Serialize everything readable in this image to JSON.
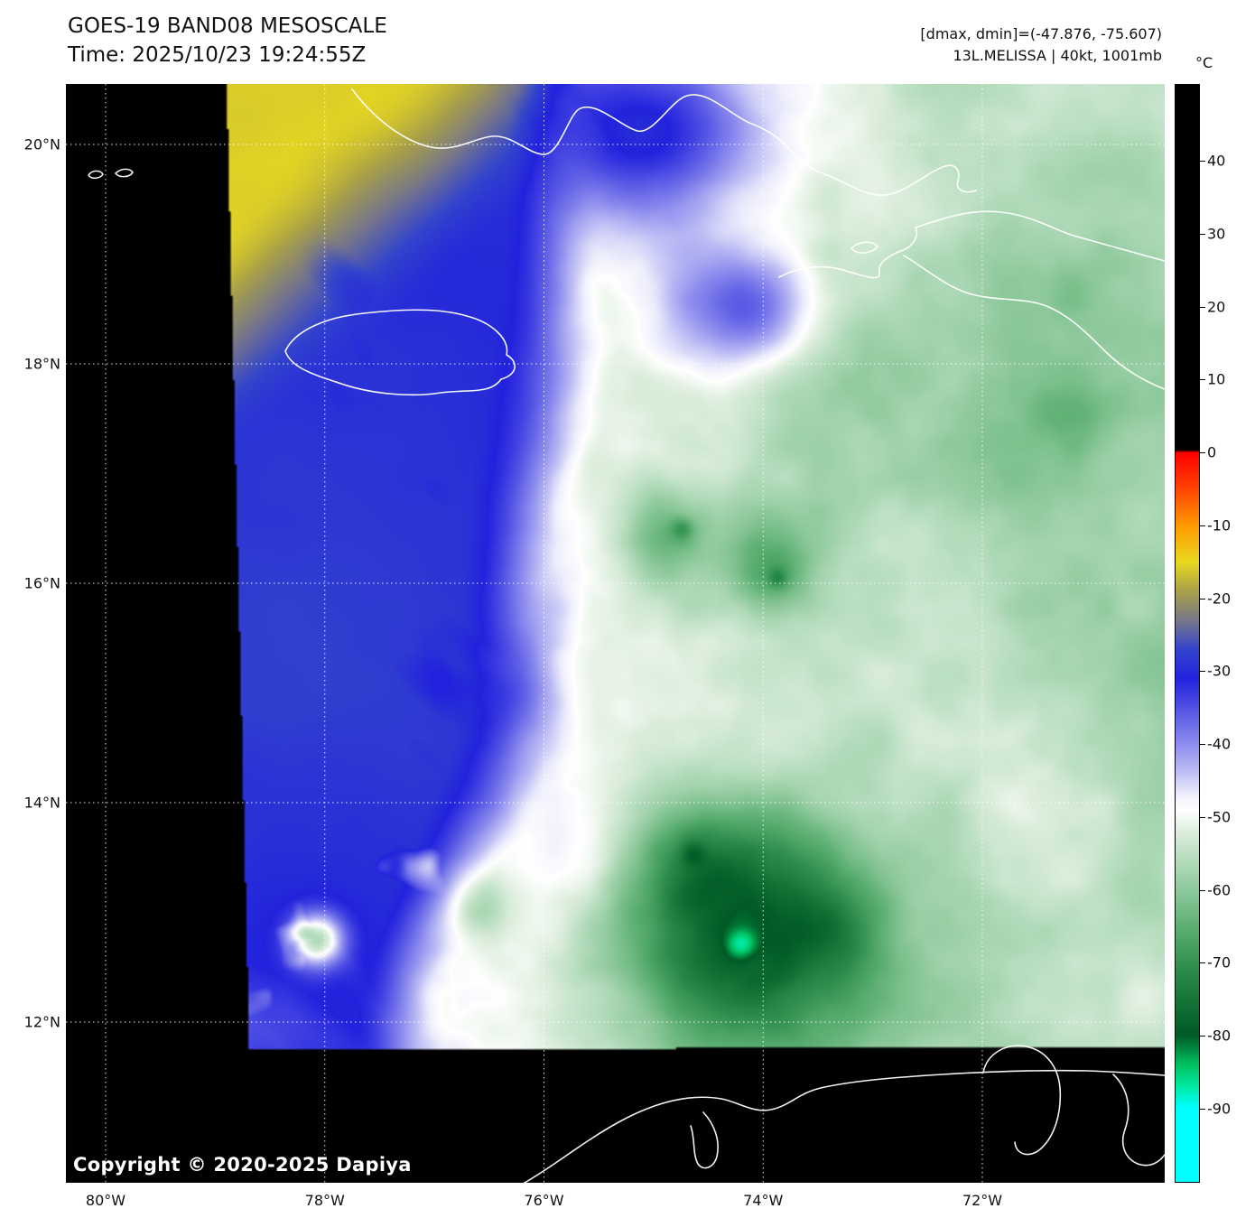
{
  "header": {
    "title": "GOES-19 BAND08 MESOSCALE",
    "time_line": "Time: 2025/10/23 19:24:55Z",
    "dmax_dmin": "[dmax, dmin]=(-47.876, -75.607)",
    "storm_info": "13L.MELISSA | 40kt, 1001mb"
  },
  "map": {
    "copyright": "Copyright © 2020-2025 Dapiya",
    "background": "#000000",
    "grid_color": "#ffffff",
    "coastline_color": "#ffffff",
    "lat_ticks": [
      {
        "label": "20°N",
        "deg": 20
      },
      {
        "label": "18°N",
        "deg": 18
      },
      {
        "label": "16°N",
        "deg": 16
      },
      {
        "label": "14°N",
        "deg": 14
      },
      {
        "label": "12°N",
        "deg": 12
      }
    ],
    "lon_ticks": [
      {
        "label": "80°W",
        "deg": 80
      },
      {
        "label": "78°W",
        "deg": 78
      },
      {
        "label": "76°W",
        "deg": 76
      },
      {
        "label": "74°W",
        "deg": 74
      },
      {
        "label": "72°W",
        "deg": 72
      }
    ]
  },
  "colorbar": {
    "unit": "°C",
    "ticks": [
      {
        "label": "40",
        "t": 40
      },
      {
        "label": "30",
        "t": 30
      },
      {
        "label": "20",
        "t": 20
      },
      {
        "label": "10",
        "t": 10
      },
      {
        "label": "0",
        "t": 0
      },
      {
        "label": "-10",
        "t": -10
      },
      {
        "label": "-20",
        "t": -20
      },
      {
        "label": "-30",
        "t": -30
      },
      {
        "label": "-40",
        "t": -40
      },
      {
        "label": "-50",
        "t": -50
      },
      {
        "label": "-60",
        "t": -60
      },
      {
        "label": "-70",
        "t": -70
      },
      {
        "label": "-80",
        "t": -80
      },
      {
        "label": "-90",
        "t": -90
      }
    ],
    "stops": [
      {
        "t": 50.5,
        "color": "#000000"
      },
      {
        "t": 0.4,
        "color": "#000000"
      },
      {
        "t": 0,
        "color": "#ff0000"
      },
      {
        "t": -5,
        "color": "#ff4400"
      },
      {
        "t": -10,
        "color": "#ff9900"
      },
      {
        "t": -15,
        "color": "#e8d820"
      },
      {
        "t": -19,
        "color": "#a8a048"
      },
      {
        "t": -23,
        "color": "#777788"
      },
      {
        "t": -27,
        "color": "#3344cc"
      },
      {
        "t": -31,
        "color": "#2222dd"
      },
      {
        "t": -36,
        "color": "#5c5ce6"
      },
      {
        "t": -40,
        "color": "#8c8cee"
      },
      {
        "t": -44,
        "color": "#c0c0f5"
      },
      {
        "t": -47,
        "color": "#eeeefc"
      },
      {
        "t": -49,
        "color": "#ffffff"
      },
      {
        "t": -52,
        "color": "#ddeedd"
      },
      {
        "t": -56,
        "color": "#b4dcbc"
      },
      {
        "t": -61,
        "color": "#84c494"
      },
      {
        "t": -66,
        "color": "#54aa6c"
      },
      {
        "t": -71,
        "color": "#2c8c4c"
      },
      {
        "t": -76,
        "color": "#107034"
      },
      {
        "t": -80,
        "color": "#005a26"
      },
      {
        "t": -84,
        "color": "#00c060"
      },
      {
        "t": -87,
        "color": "#00e8a0"
      },
      {
        "t": -90,
        "color": "#00ffff"
      },
      {
        "t": -100.3,
        "color": "#00ffff"
      }
    ]
  }
}
